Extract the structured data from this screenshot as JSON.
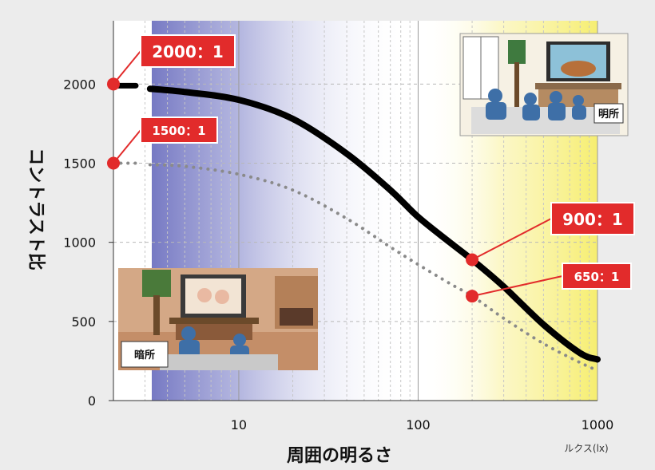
{
  "chart_data": {
    "type": "line",
    "x_scale": "log",
    "xlim": [
      2,
      1000
    ],
    "ylim": [
      0,
      2400
    ],
    "yticks": [
      0,
      500,
      1000,
      1500,
      2000
    ],
    "xticks": [
      10,
      100,
      1000
    ],
    "ylabel": "コントラスト比",
    "xlabel": "周囲の明るさ",
    "x_unit": "ルクス(lx)",
    "grid": true,
    "series": [
      {
        "name": "",
        "style": "solid",
        "color": "#000000",
        "points": [
          [
            3.2,
            1970
          ],
          [
            5,
            1950
          ],
          [
            10,
            1900
          ],
          [
            20,
            1780
          ],
          [
            40,
            1560
          ],
          [
            70,
            1330
          ],
          [
            100,
            1160
          ],
          [
            150,
            1000
          ],
          [
            200,
            890
          ],
          [
            300,
            720
          ],
          [
            500,
            480
          ],
          [
            800,
            300
          ],
          [
            1000,
            260
          ]
        ]
      },
      {
        "name": "",
        "style": "dotted",
        "color": "#8a8a8a",
        "points": [
          [
            3.2,
            1490
          ],
          [
            5,
            1480
          ],
          [
            10,
            1430
          ],
          [
            20,
            1330
          ],
          [
            40,
            1150
          ],
          [
            70,
            970
          ],
          [
            100,
            860
          ],
          [
            150,
            740
          ],
          [
            200,
            660
          ],
          [
            300,
            520
          ],
          [
            500,
            360
          ],
          [
            800,
            240
          ],
          [
            1000,
            190
          ]
        ]
      }
    ],
    "left_stubs": [
      {
        "y": 1990,
        "style": "solid",
        "color": "#000000"
      },
      {
        "y": 1500,
        "style": "dotted",
        "color": "#8a8a8a"
      }
    ],
    "annotations": [
      {
        "text": "2000：1",
        "anchor_x": 2,
        "anchor_y": 2000,
        "box": "top-left",
        "size": "large"
      },
      {
        "text": "1500：1",
        "anchor_x": 2,
        "anchor_y": 1500,
        "box": "upper-left",
        "size": "small"
      },
      {
        "text": "900：1",
        "anchor_x": 200,
        "anchor_y": 890,
        "box": "right",
        "size": "large"
      },
      {
        "text": "650：1",
        "anchor_x": 200,
        "anchor_y": 660,
        "box": "right",
        "size": "small"
      }
    ],
    "backgrounds": [
      {
        "from": 3.2,
        "to": 60,
        "color": "#6f72c0",
        "fade": "left-to-right"
      },
      {
        "from": 100,
        "to": 1000,
        "color": "#f6ee70",
        "fade": "right-to-left"
      }
    ],
    "colors": {
      "marker": "#e22b2b",
      "label_bg": "#e22b2b",
      "label_text": "#ffffff"
    }
  },
  "illustrations": {
    "bright_room": {
      "label": "明所"
    },
    "dark_room": {
      "label": "暗所"
    }
  }
}
